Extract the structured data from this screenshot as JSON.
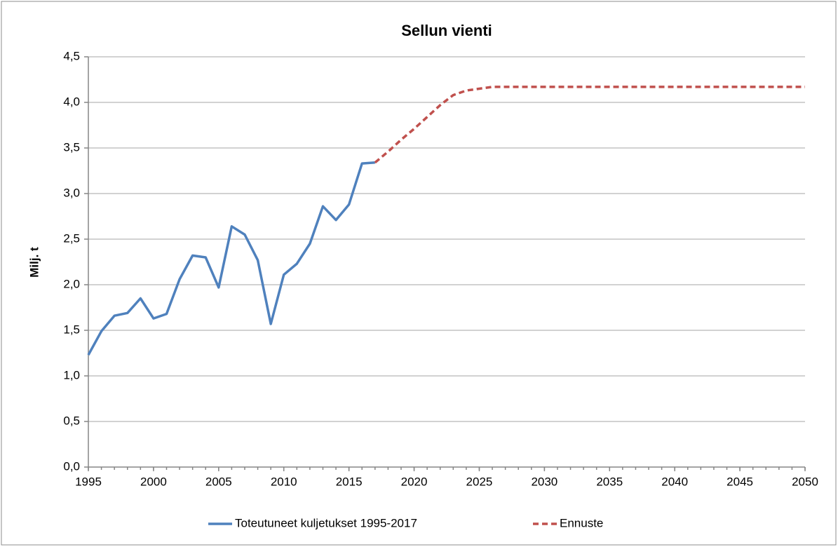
{
  "chart_data": {
    "type": "line",
    "title": "Sellun vienti",
    "y_label": "Milj. t",
    "xlim": [
      1995,
      2050
    ],
    "xticks": [
      1995,
      2000,
      2005,
      2010,
      2015,
      2020,
      2025,
      2030,
      2035,
      2040,
      2045,
      2050
    ],
    "ylim": [
      0,
      4.5
    ],
    "yticks": [
      {
        "value": 0,
        "label": "0,0"
      },
      {
        "value": 0.5,
        "label": "0,5"
      },
      {
        "value": 1,
        "label": "1,0"
      },
      {
        "value": 1.5,
        "label": "1,5"
      },
      {
        "value": 2,
        "label": "2,0"
      },
      {
        "value": 2.5,
        "label": "2,5"
      },
      {
        "value": 3,
        "label": "3,0"
      },
      {
        "value": 3.5,
        "label": "3,5"
      },
      {
        "value": 4,
        "label": "4,0"
      },
      {
        "value": 4.5,
        "label": "4,5"
      }
    ],
    "grid": true,
    "legend": "bottom",
    "series": [
      {
        "name": "Toteutuneet kuljetukset 1995-2017",
        "color": "#4f81bd",
        "style": "solid",
        "x": [
          1995,
          1996,
          1997,
          1998,
          1999,
          2000,
          2001,
          2002,
          2003,
          2004,
          2005,
          2006,
          2007,
          2008,
          2009,
          2010,
          2011,
          2012,
          2013,
          2014,
          2015,
          2016,
          2017
        ],
        "values": [
          1.23,
          1.49,
          1.66,
          1.69,
          1.85,
          1.63,
          1.68,
          2.06,
          2.32,
          2.3,
          1.97,
          2.64,
          2.55,
          2.27,
          1.57,
          2.11,
          2.23,
          2.45,
          2.86,
          2.71,
          2.88,
          3.33,
          3.34
        ]
      },
      {
        "name": "Ennuste",
        "color": "#c0504d",
        "style": "dashed",
        "x": [
          2017,
          2018,
          2019,
          2020,
          2021,
          2022,
          2023,
          2024,
          2025,
          2026,
          2050
        ],
        "values": [
          3.34,
          3.46,
          3.59,
          3.71,
          3.84,
          3.97,
          4.08,
          4.13,
          4.15,
          4.17,
          4.17
        ]
      }
    ]
  }
}
